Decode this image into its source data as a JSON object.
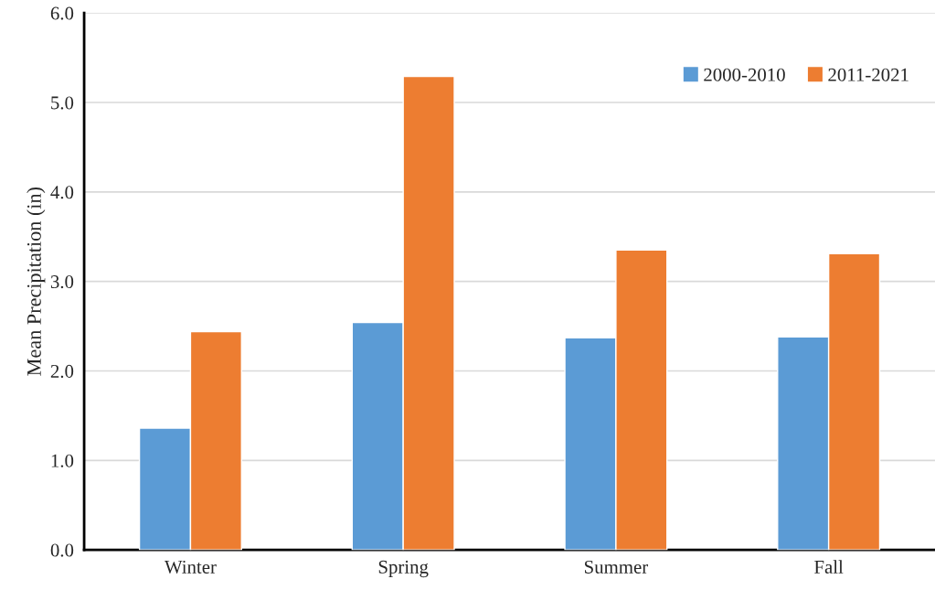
{
  "chart_data": {
    "type": "bar",
    "ylabel": "Mean Precipitation (in)",
    "categories": [
      "Winter",
      "Spring",
      "Summer",
      "Fall"
    ],
    "series": [
      {
        "name": "2000-2010",
        "color": "#5b9bd5",
        "values": [
          1.36,
          2.54,
          2.37,
          2.38
        ]
      },
      {
        "name": "2011-2021",
        "color": "#ed7d31",
        "values": [
          2.44,
          5.29,
          3.35,
          3.31
        ]
      }
    ],
    "ylim": [
      0,
      6
    ],
    "yticks": [
      {
        "value": 0,
        "label": "0.0"
      },
      {
        "value": 1,
        "label": "1.0"
      },
      {
        "value": 2,
        "label": "2.0"
      },
      {
        "value": 3,
        "label": "3.0"
      },
      {
        "value": 4,
        "label": "4.0"
      },
      {
        "value": 5,
        "label": "5.0"
      },
      {
        "value": 6,
        "label": "6.0"
      }
    ],
    "grid": "y",
    "legend": "top right"
  }
}
